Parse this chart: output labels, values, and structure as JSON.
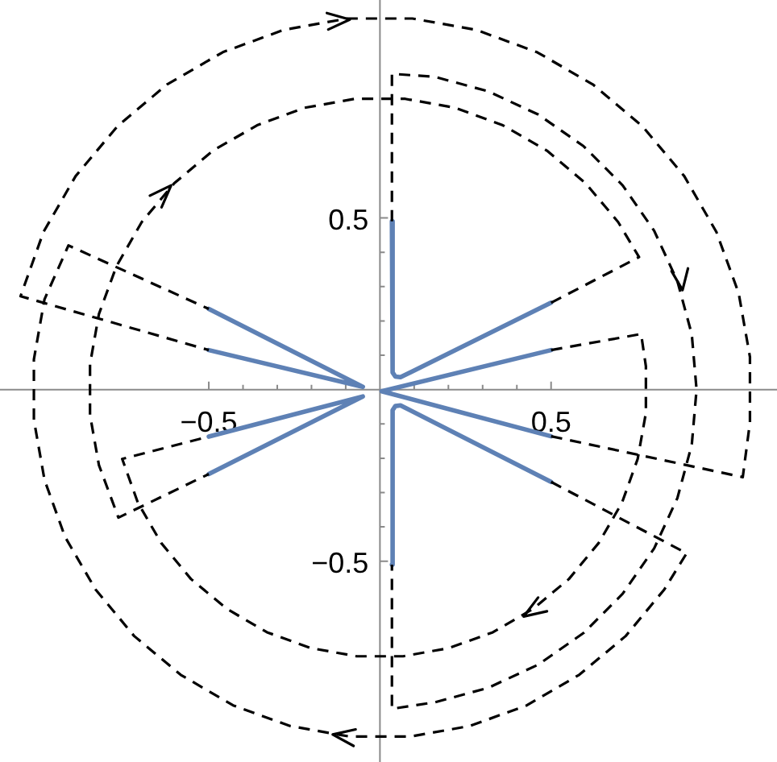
{
  "chart_data": {
    "type": "line",
    "xlim": [
      -1.11,
      1.16
    ],
    "ylim": [
      -1.085,
      1.135
    ],
    "xticks": [
      {
        "value": -0.5,
        "label": "−0.5"
      },
      {
        "value": -0.4,
        "label": null
      },
      {
        "value": -0.3,
        "label": null
      },
      {
        "value": -0.2,
        "label": null
      },
      {
        "value": -0.1,
        "label": null
      },
      {
        "value": 0.1,
        "label": null
      },
      {
        "value": 0.2,
        "label": null
      },
      {
        "value": 0.3,
        "label": null
      },
      {
        "value": 0.4,
        "label": null
      },
      0.5
    ],
    "yticks": [
      {
        "value": -0.5,
        "label": "−0.5"
      },
      {
        "value": -0.4,
        "label": null
      },
      {
        "value": -0.3,
        "label": null
      },
      {
        "value": -0.2,
        "label": null
      },
      {
        "value": -0.1,
        "label": null
      },
      {
        "value": 0.1,
        "label": null
      },
      {
        "value": 0.2,
        "label": null
      },
      {
        "value": 0.3,
        "label": null
      },
      {
        "value": 0.4,
        "label": null
      },
      0.5
    ],
    "series": [
      {
        "color": "#000000",
        "line_style": "dashed",
        "x": [
          0.035,
          0.035,
          0.161,
          0.316,
          0.463,
          0.595,
          0.709,
          0.801,
          0.869,
          0.911,
          0.925,
          0.911,
          0.869,
          0.801,
          0.709,
          0.595,
          0.463,
          0.316,
          0.161,
          0.035,
          0.035
        ],
        "values": [
          0.49,
          0.92,
          0.911,
          0.869,
          0.801,
          0.709,
          0.595,
          0.463,
          0.316,
          0.161,
          0,
          -0.161,
          -0.316,
          -0.463,
          -0.595,
          -0.709,
          -0.801,
          -0.869,
          -0.911,
          -0.93,
          -0.51
        ]
      },
      {
        "color": "#000000",
        "line_style": "dashed",
        "x": [
          0.5,
          0.757,
          0.696,
          0.601,
          0.488,
          0.359,
          0.22,
          0.074,
          -0.074,
          -0.22,
          -0.359,
          -0.488,
          -0.601,
          -0.696,
          -0.77,
          -0.821,
          -0.847,
          -0.847,
          -0.821,
          -0.764,
          -0.5
        ],
        "values": [
          0.253,
          0.386,
          0.488,
          0.601,
          0.696,
          0.77,
          0.821,
          0.847,
          0.847,
          0.821,
          0.77,
          0.696,
          0.601,
          0.488,
          0.359,
          0.22,
          0.074,
          -0.074,
          -0.22,
          -0.373,
          -0.246
        ]
      },
      {
        "color": "#000000",
        "line_style": "dashed",
        "x": [
          0.5,
          0.763,
          0.777,
          0.777,
          0.753,
          0.707,
          0.639,
          0.552,
          0.447,
          0.33,
          0.202,
          0.068,
          -0.068,
          -0.202,
          -0.33,
          -0.447,
          -0.552,
          -0.639,
          -0.707,
          -0.753,
          -0.5
        ],
        "values": [
          0.115,
          0.162,
          0.068,
          -0.068,
          -0.202,
          -0.33,
          -0.447,
          -0.552,
          -0.639,
          -0.707,
          -0.753,
          -0.777,
          -0.777,
          -0.753,
          -0.707,
          -0.639,
          -0.552,
          -0.447,
          -0.33,
          -0.202,
          -0.137
        ]
      },
      {
        "color": "#000000",
        "line_style": "dashed",
        "x": [
          0.5,
          1.06,
          1.081,
          1.081,
          1.048,
          0.983,
          0.889,
          0.767,
          0.622,
          0.459,
          0.281,
          0.095,
          -0.095,
          -0.281,
          -0.459,
          -0.622,
          -0.767,
          -0.889,
          -0.983,
          -1.05,
          -0.5
        ],
        "values": [
          -0.136,
          -0.255,
          -0.095,
          0.095,
          0.281,
          0.459,
          0.622,
          0.767,
          0.889,
          0.983,
          1.048,
          1.081,
          1.081,
          1.048,
          0.983,
          0.889,
          0.767,
          0.622,
          0.459,
          0.272,
          0.115
        ]
      },
      {
        "color": "#000000",
        "line_style": "dashed",
        "x": [
          0.5,
          0.896,
          0.831,
          0.718,
          0.582,
          0.429,
          0.263,
          0.088,
          -0.088,
          -0.263,
          -0.429,
          -0.582,
          -0.718,
          -0.831,
          -0.92,
          -0.98,
          -1.011,
          -1.011,
          -0.98,
          -0.91,
          -0.5
        ],
        "values": [
          -0.269,
          -0.477,
          -0.582,
          -0.718,
          -0.831,
          -0.92,
          -0.98,
          -1.011,
          -1.011,
          -0.98,
          -0.92,
          -0.831,
          -0.718,
          -0.582,
          -0.429,
          -0.263,
          -0.088,
          0.088,
          0.263,
          0.42,
          0.235
        ]
      },
      {
        "color": "#5e81b5",
        "line_style": "solid",
        "x": [
          0.035,
          0.037,
          0.045,
          0.06,
          0.5
        ],
        "values": [
          0.49,
          0.05,
          0.038,
          0.036,
          0.253
        ]
      },
      {
        "color": "#5e81b5",
        "line_style": "solid",
        "x": [
          0.5,
          0.005,
          0.5
        ],
        "values": [
          0.115,
          -0.005,
          -0.136
        ]
      },
      {
        "color": "#5e81b5",
        "line_style": "solid",
        "x": [
          0.035,
          0.037,
          0.045,
          0.06,
          0.5
        ],
        "values": [
          -0.51,
          -0.06,
          -0.048,
          -0.046,
          -0.269
        ]
      },
      {
        "color": "#5e81b5",
        "line_style": "solid",
        "x": [
          -0.5,
          -0.05,
          -0.5
        ],
        "values": [
          0.235,
          0.008,
          0.115
        ]
      },
      {
        "color": "#5e81b5",
        "line_style": "solid",
        "x": [
          -0.5,
          -0.05,
          -0.5
        ],
        "values": [
          -0.137,
          -0.02,
          -0.246
        ]
      },
      {
        "color": "#000000",
        "line_style": "solid",
        "x": [
          -0.155,
          -0.088,
          -0.151
        ],
        "values": [
          1.097,
          1.078,
          1.049
        ]
      },
      {
        "color": "#000000",
        "line_style": "solid",
        "x": [
          -0.672,
          -0.61,
          -0.638
        ],
        "values": [
          0.565,
          0.595,
          0.531
        ]
      },
      {
        "color": "#000000",
        "line_style": "solid",
        "x": [
          0.852,
          0.884,
          0.9
        ],
        "values": [
          0.345,
          0.29,
          0.353
        ]
      },
      {
        "color": "#000000",
        "line_style": "solid",
        "x": [
          0.488,
          0.42,
          0.462
        ],
        "values": [
          -0.646,
          -0.661,
          -0.606
        ]
      },
      {
        "color": "#000000",
        "line_style": "solid",
        "x": [
          -0.077,
          -0.138,
          -0.071
        ],
        "values": [
          -1.038,
          -1.005,
          -0.99
        ]
      }
    ]
  }
}
